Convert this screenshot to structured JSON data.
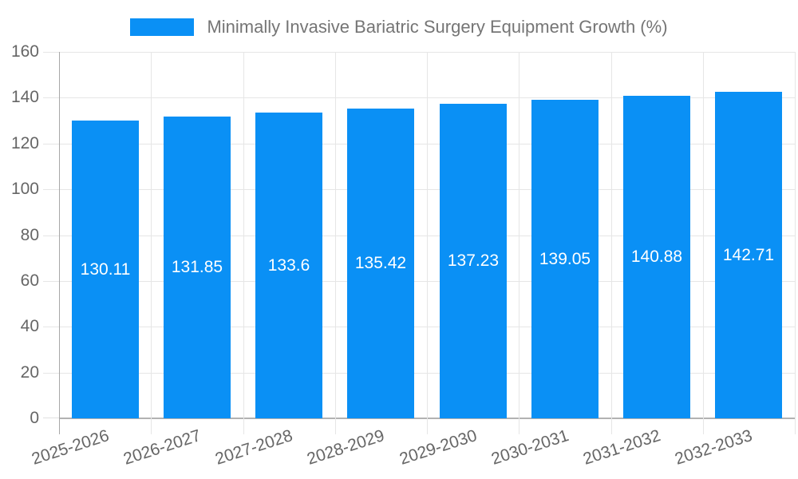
{
  "legend": {
    "label": "Minimally Invasive Bariatric Surgery Equipment Growth (%)",
    "swatch_color": "#0a90f5"
  },
  "chart_data": {
    "type": "bar",
    "title": "Minimally Invasive Bariatric Surgery Equipment Growth (%)",
    "categories": [
      "2025-2026",
      "2026-2027",
      "2027-2028",
      "2028-2029",
      "2029-2030",
      "2030-2031",
      "2031-2032",
      "2032-2033"
    ],
    "values": [
      130.11,
      131.85,
      133.6,
      135.42,
      137.23,
      139.05,
      140.88,
      142.71
    ],
    "value_labels": [
      "130.11",
      "131.85",
      "133.6",
      "135.42",
      "137.23",
      "139.05",
      "140.88",
      "142.71"
    ],
    "xlabel": "",
    "ylabel": "",
    "ylim": [
      0,
      160
    ],
    "y_ticks": [
      0,
      20,
      40,
      60,
      80,
      100,
      120,
      140,
      160
    ],
    "grid": true,
    "legend_position": "top",
    "bar_color": "#0a90f5",
    "value_label_color": "#ffffff",
    "axis_text_color": "#666666"
  }
}
